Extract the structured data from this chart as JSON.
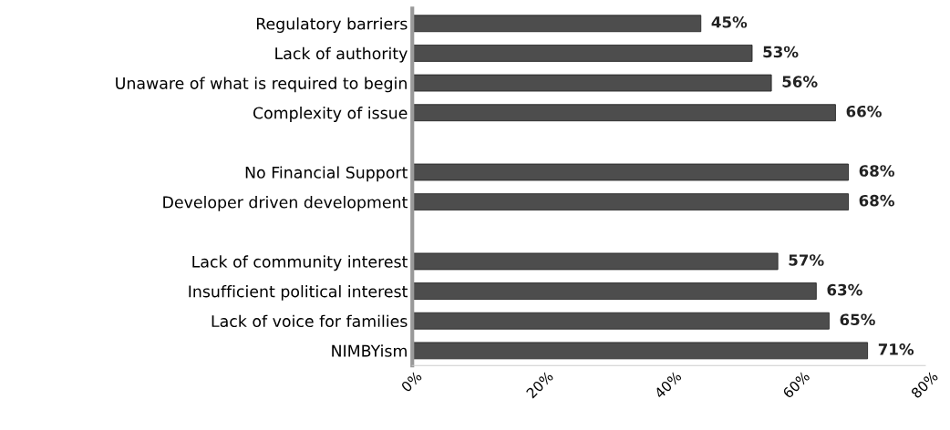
{
  "chart_data": {
    "type": "bar",
    "orientation": "horizontal",
    "categories": [
      "Regulatory barriers",
      "Lack of authority",
      "Unaware of what is required to begin",
      "Complexity of issue",
      null,
      "No Financial Support",
      "Developer driven development",
      null,
      "Lack of community interest",
      "Insufficient political interest",
      "Lack of voice for families",
      "NIMBYism"
    ],
    "values": [
      45,
      53,
      56,
      66,
      null,
      68,
      68,
      null,
      57,
      63,
      65,
      71
    ],
    "value_labels": [
      "45%",
      "53%",
      "56%",
      "66%",
      null,
      "68%",
      "68%",
      null,
      "57%",
      "63%",
      "65%",
      "71%"
    ],
    "color": "#4d4d4d",
    "xlim": [
      0,
      80
    ],
    "xticks": [
      {
        "value": 0,
        "label": "0%"
      },
      {
        "value": 20,
        "label": "20%"
      },
      {
        "value": 40,
        "label": "40%"
      },
      {
        "value": 60,
        "label": "60%"
      },
      {
        "value": 80,
        "label": "80%"
      }
    ],
    "grid": false
  }
}
